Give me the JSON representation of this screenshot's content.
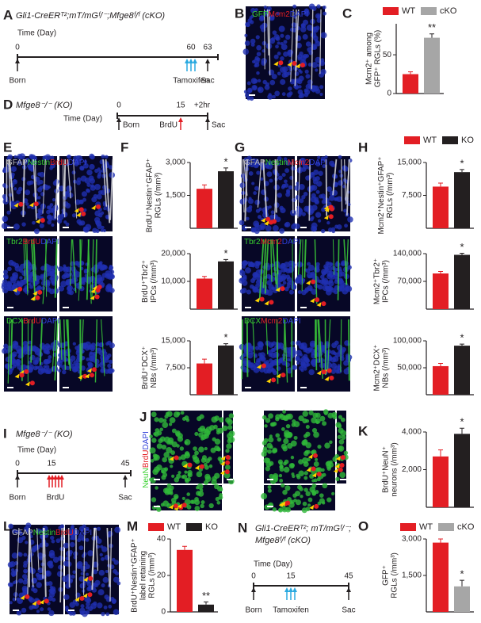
{
  "panel_labels": [
    "A",
    "B",
    "C",
    "D",
    "E",
    "F",
    "G",
    "H",
    "I",
    "J",
    "K",
    "L",
    "M",
    "N",
    "O"
  ],
  "timelines": [
    {
      "genotype": [
        "Gli1-CreERᵀ²;mT/mGᶠ/⁻;Mfge8ᶠ/ᶠ (cKO)"
      ],
      "axis_label": "Time (Day)",
      "ticks": [
        0,
        60,
        63
      ],
      "events": [
        {
          "label": "Born",
          "color": "#231f20"
        },
        {
          "label": "Tamoxifen",
          "color": "#29a9e0"
        },
        {
          "label": "Sac",
          "color": "#231f20"
        }
      ]
    },
    {
      "genotype": [
        "Mfge8⁻/⁻ (KO)"
      ],
      "axis_label": "Time (Day)",
      "ticks": [
        0,
        15,
        "+2hr"
      ],
      "events": [
        {
          "label": "Born",
          "color": "#231f20"
        },
        {
          "label": "BrdU",
          "color": "#e31e24"
        },
        {
          "label": "Sac",
          "color": "#231f20"
        }
      ]
    },
    {
      "genotype": [
        "Mfge8⁻/⁻ (KO)"
      ],
      "axis_label": "Time (Day)",
      "ticks": [
        0,
        15,
        45
      ],
      "events": [
        {
          "label": "Born",
          "color": "#231f20"
        },
        {
          "label": "BrdU",
          "color": "#e31e24"
        },
        {
          "label": "Sac",
          "color": "#231f20"
        }
      ]
    },
    {
      "genotype": [
        "Gli1-CreERᵀ²; mT/mGᶠ/⁻;",
        "Mfge8ᶠ/ᶠ (cKO)"
      ],
      "axis_label": "Time (Day)",
      "ticks": [
        0,
        15,
        45
      ],
      "events": [
        {
          "label": "Born",
          "color": "#231f20"
        },
        {
          "label": "Tamoxifen",
          "color": "#29a9e0"
        },
        {
          "label": "Sac",
          "color": "#231f20"
        }
      ]
    }
  ],
  "image_labels": [
    [
      {
        "text": "GFP",
        "color": "#39d12f"
      },
      {
        "text": "Mcm2",
        "color": "#e31e24"
      },
      {
        "text": "DAPI",
        "color": "#2f3fd8"
      }
    ],
    [
      {
        "text": "GFAP",
        "color": "#bbbbbb"
      },
      {
        "text": "Nestin",
        "color": "#39d12f"
      },
      {
        "text": "BrdU",
        "color": "#e31e24"
      },
      {
        "text": "DAPI",
        "color": "#2f3fd8"
      }
    ],
    [
      {
        "text": "Tbr2",
        "color": "#39d12f"
      },
      {
        "text": "BrdU",
        "color": "#e31e24"
      },
      {
        "text": "DAPI",
        "color": "#2f3fd8"
      }
    ],
    [
      {
        "text": "DCX",
        "color": "#39d12f"
      },
      {
        "text": "BrdU",
        "color": "#e31e24"
      },
      {
        "text": "DAPI",
        "color": "#2f3fd8"
      }
    ],
    [
      {
        "text": "GFAP",
        "color": "#bbbbbb"
      },
      {
        "text": "Nestin",
        "color": "#39d12f"
      },
      {
        "text": "Mcm2",
        "color": "#e31e24"
      },
      {
        "text": "DAPI",
        "color": "#2f3fd8"
      }
    ],
    [
      {
        "text": "Tbr2",
        "color": "#39d12f"
      },
      {
        "text": "Mcm2",
        "color": "#e31e24"
      },
      {
        "text": "DAPI",
        "color": "#2f3fd8"
      }
    ],
    [
      {
        "text": "DCX",
        "color": "#39d12f"
      },
      {
        "text": "Mcm2",
        "color": "#e31e24"
      },
      {
        "text": "DAPI",
        "color": "#2f3fd8"
      }
    ],
    [
      {
        "text": "NeuN",
        "color": "#39d12f"
      },
      {
        "text": "BrdU",
        "color": "#e31e24"
      },
      {
        "text": "DAPI",
        "color": "#2f3fd8"
      }
    ],
    [
      {
        "text": "GFAP",
        "color": "#bbbbbb"
      },
      {
        "text": "Nestin",
        "color": "#39d12f"
      },
      {
        "text": "BrdU",
        "color": "#e31e24"
      },
      {
        "text": "DAPI",
        "color": "#2f3fd8"
      }
    ]
  ],
  "chart_data": [
    {
      "type": "bar",
      "y_label": [
        "Mcm2⁺ among",
        "GFP⁺ RGLs (%)"
      ],
      "categories": [
        null,
        null
      ],
      "values": [
        25,
        72
      ],
      "errors": [
        3,
        5
      ],
      "colors": [
        "#e31e24",
        "#a6a6a6"
      ],
      "ylim": [
        0,
        90
      ],
      "yticks": [
        0,
        50
      ],
      "significance": "**",
      "legend": [
        {
          "name": "WT",
          "color": "#e31e24"
        },
        {
          "name": "cKO",
          "color": "#a6a6a6"
        }
      ]
    },
    {
      "type": "bar",
      "y_label": [
        "BrdU⁺Nestin⁺GFAP⁺",
        "RGLs (/mm³)"
      ],
      "categories": [
        null,
        null
      ],
      "values": [
        1800,
        2600
      ],
      "errors": [
        180,
        150
      ],
      "colors": [
        "#e31e24",
        "#231f20"
      ],
      "ylim": [
        0,
        3000
      ],
      "yticks": [
        {
          "value": 1500,
          "label": "1,500"
        },
        {
          "value": 3000,
          "label": "3,000"
        }
      ],
      "significance": "*"
    },
    {
      "type": "bar",
      "y_label": [
        "BrdU⁺Tbr2⁺",
        "IPCs (/mm³)"
      ],
      "categories": [
        null,
        null
      ],
      "values": [
        11000,
        17200
      ],
      "errors": [
        800,
        700
      ],
      "colors": [
        "#e31e24",
        "#231f20"
      ],
      "ylim": [
        0,
        20000
      ],
      "yticks": [
        {
          "value": 10000,
          "label": "10,000"
        },
        {
          "value": 20000,
          "label": "20,000"
        }
      ],
      "significance": "*"
    },
    {
      "type": "bar",
      "y_label": [
        "BrdU⁺DCX⁺",
        "NBs (/mm³)"
      ],
      "categories": [
        null,
        null
      ],
      "values": [
        8700,
        13700
      ],
      "errors": [
        1200,
        500
      ],
      "colors": [
        "#e31e24",
        "#231f20"
      ],
      "ylim": [
        0,
        15000
      ],
      "yticks": [
        {
          "value": 7500,
          "label": "7,500"
        },
        {
          "value": 15000,
          "label": "15,000"
        }
      ],
      "significance": "*"
    },
    {
      "type": "bar",
      "y_label": [
        "Mcm2⁺Nestin⁺GFAP⁺",
        "RGLs (/mm³)"
      ],
      "categories": [
        null,
        null
      ],
      "values": [
        9500,
        12800
      ],
      "errors": [
        800,
        600
      ],
      "colors": [
        "#e31e24",
        "#231f20"
      ],
      "ylim": [
        0,
        15000
      ],
      "yticks": [
        {
          "value": 7500,
          "label": "7,500"
        },
        {
          "value": 15000,
          "label": "15,000"
        }
      ],
      "significance": "*",
      "legend": [
        {
          "name": "WT",
          "color": "#e31e24"
        },
        {
          "name": "KO",
          "color": "#231f20"
        }
      ]
    },
    {
      "type": "bar",
      "y_label": [
        "Mcm2⁺Tbr2⁺",
        "IPCs (/mm³)"
      ],
      "categories": [
        null,
        null
      ],
      "values": [
        90000,
        137000
      ],
      "errors": [
        5000,
        4000
      ],
      "colors": [
        "#e31e24",
        "#231f20"
      ],
      "ylim": [
        0,
        140000
      ],
      "yticks": [
        {
          "value": 70000,
          "label": "70,000"
        },
        {
          "value": 140000,
          "label": "140,000"
        }
      ],
      "significance": "*"
    },
    {
      "type": "bar",
      "y_label": [
        "Mcm2⁺DCX⁺",
        "NBs (/mm³)"
      ],
      "categories": [
        null,
        null
      ],
      "values": [
        53000,
        91000
      ],
      "errors": [
        5000,
        3000
      ],
      "colors": [
        "#e31e24",
        "#231f20"
      ],
      "ylim": [
        0,
        100000
      ],
      "yticks": [
        {
          "value": 50000,
          "label": "50,000"
        },
        {
          "value": 100000,
          "label": "100,000"
        }
      ],
      "significance": "*"
    },
    {
      "type": "bar",
      "y_label": [
        "BrdU⁺NeuN⁺",
        "neurons (/mm³)"
      ],
      "categories": [
        null,
        null
      ],
      "values": [
        2700,
        3900
      ],
      "errors": [
        350,
        300
      ],
      "colors": [
        "#e31e24",
        "#231f20"
      ],
      "ylim": [
        0,
        4000
      ],
      "yticks": [
        {
          "value": 2000,
          "label": "2,000"
        },
        {
          "value": 4000,
          "label": "4,000"
        }
      ],
      "significance": "*"
    },
    {
      "type": "bar",
      "y_label": [
        "BrdU⁺Nestin⁺GFAP⁺",
        "label retaining",
        "RGLs (/mm³)"
      ],
      "categories": [
        null,
        null
      ],
      "values": [
        34,
        4
      ],
      "errors": [
        2,
        1.5
      ],
      "colors": [
        "#e31e24",
        "#231f20"
      ],
      "ylim": [
        0,
        40
      ],
      "yticks": [
        0,
        20,
        40
      ],
      "significance": "**",
      "legend": [
        {
          "name": "WT",
          "color": "#e31e24"
        },
        {
          "name": "KO",
          "color": "#231f20"
        }
      ]
    },
    {
      "type": "bar",
      "y_label": [
        "GFP⁺",
        "RGLs (/mm³)"
      ],
      "categories": [
        null,
        null
      ],
      "values": [
        2850,
        1050
      ],
      "errors": [
        150,
        250
      ],
      "colors": [
        "#e31e24",
        "#a6a6a6"
      ],
      "ylim": [
        0,
        3000
      ],
      "yticks": [
        {
          "value": 1500,
          "label": "1,500"
        },
        {
          "value": 3000,
          "label": "3,000"
        }
      ],
      "significance": "*",
      "legend": [
        {
          "name": "WT",
          "color": "#e31e24"
        },
        {
          "name": "cKO",
          "color": "#a6a6a6"
        }
      ]
    }
  ]
}
